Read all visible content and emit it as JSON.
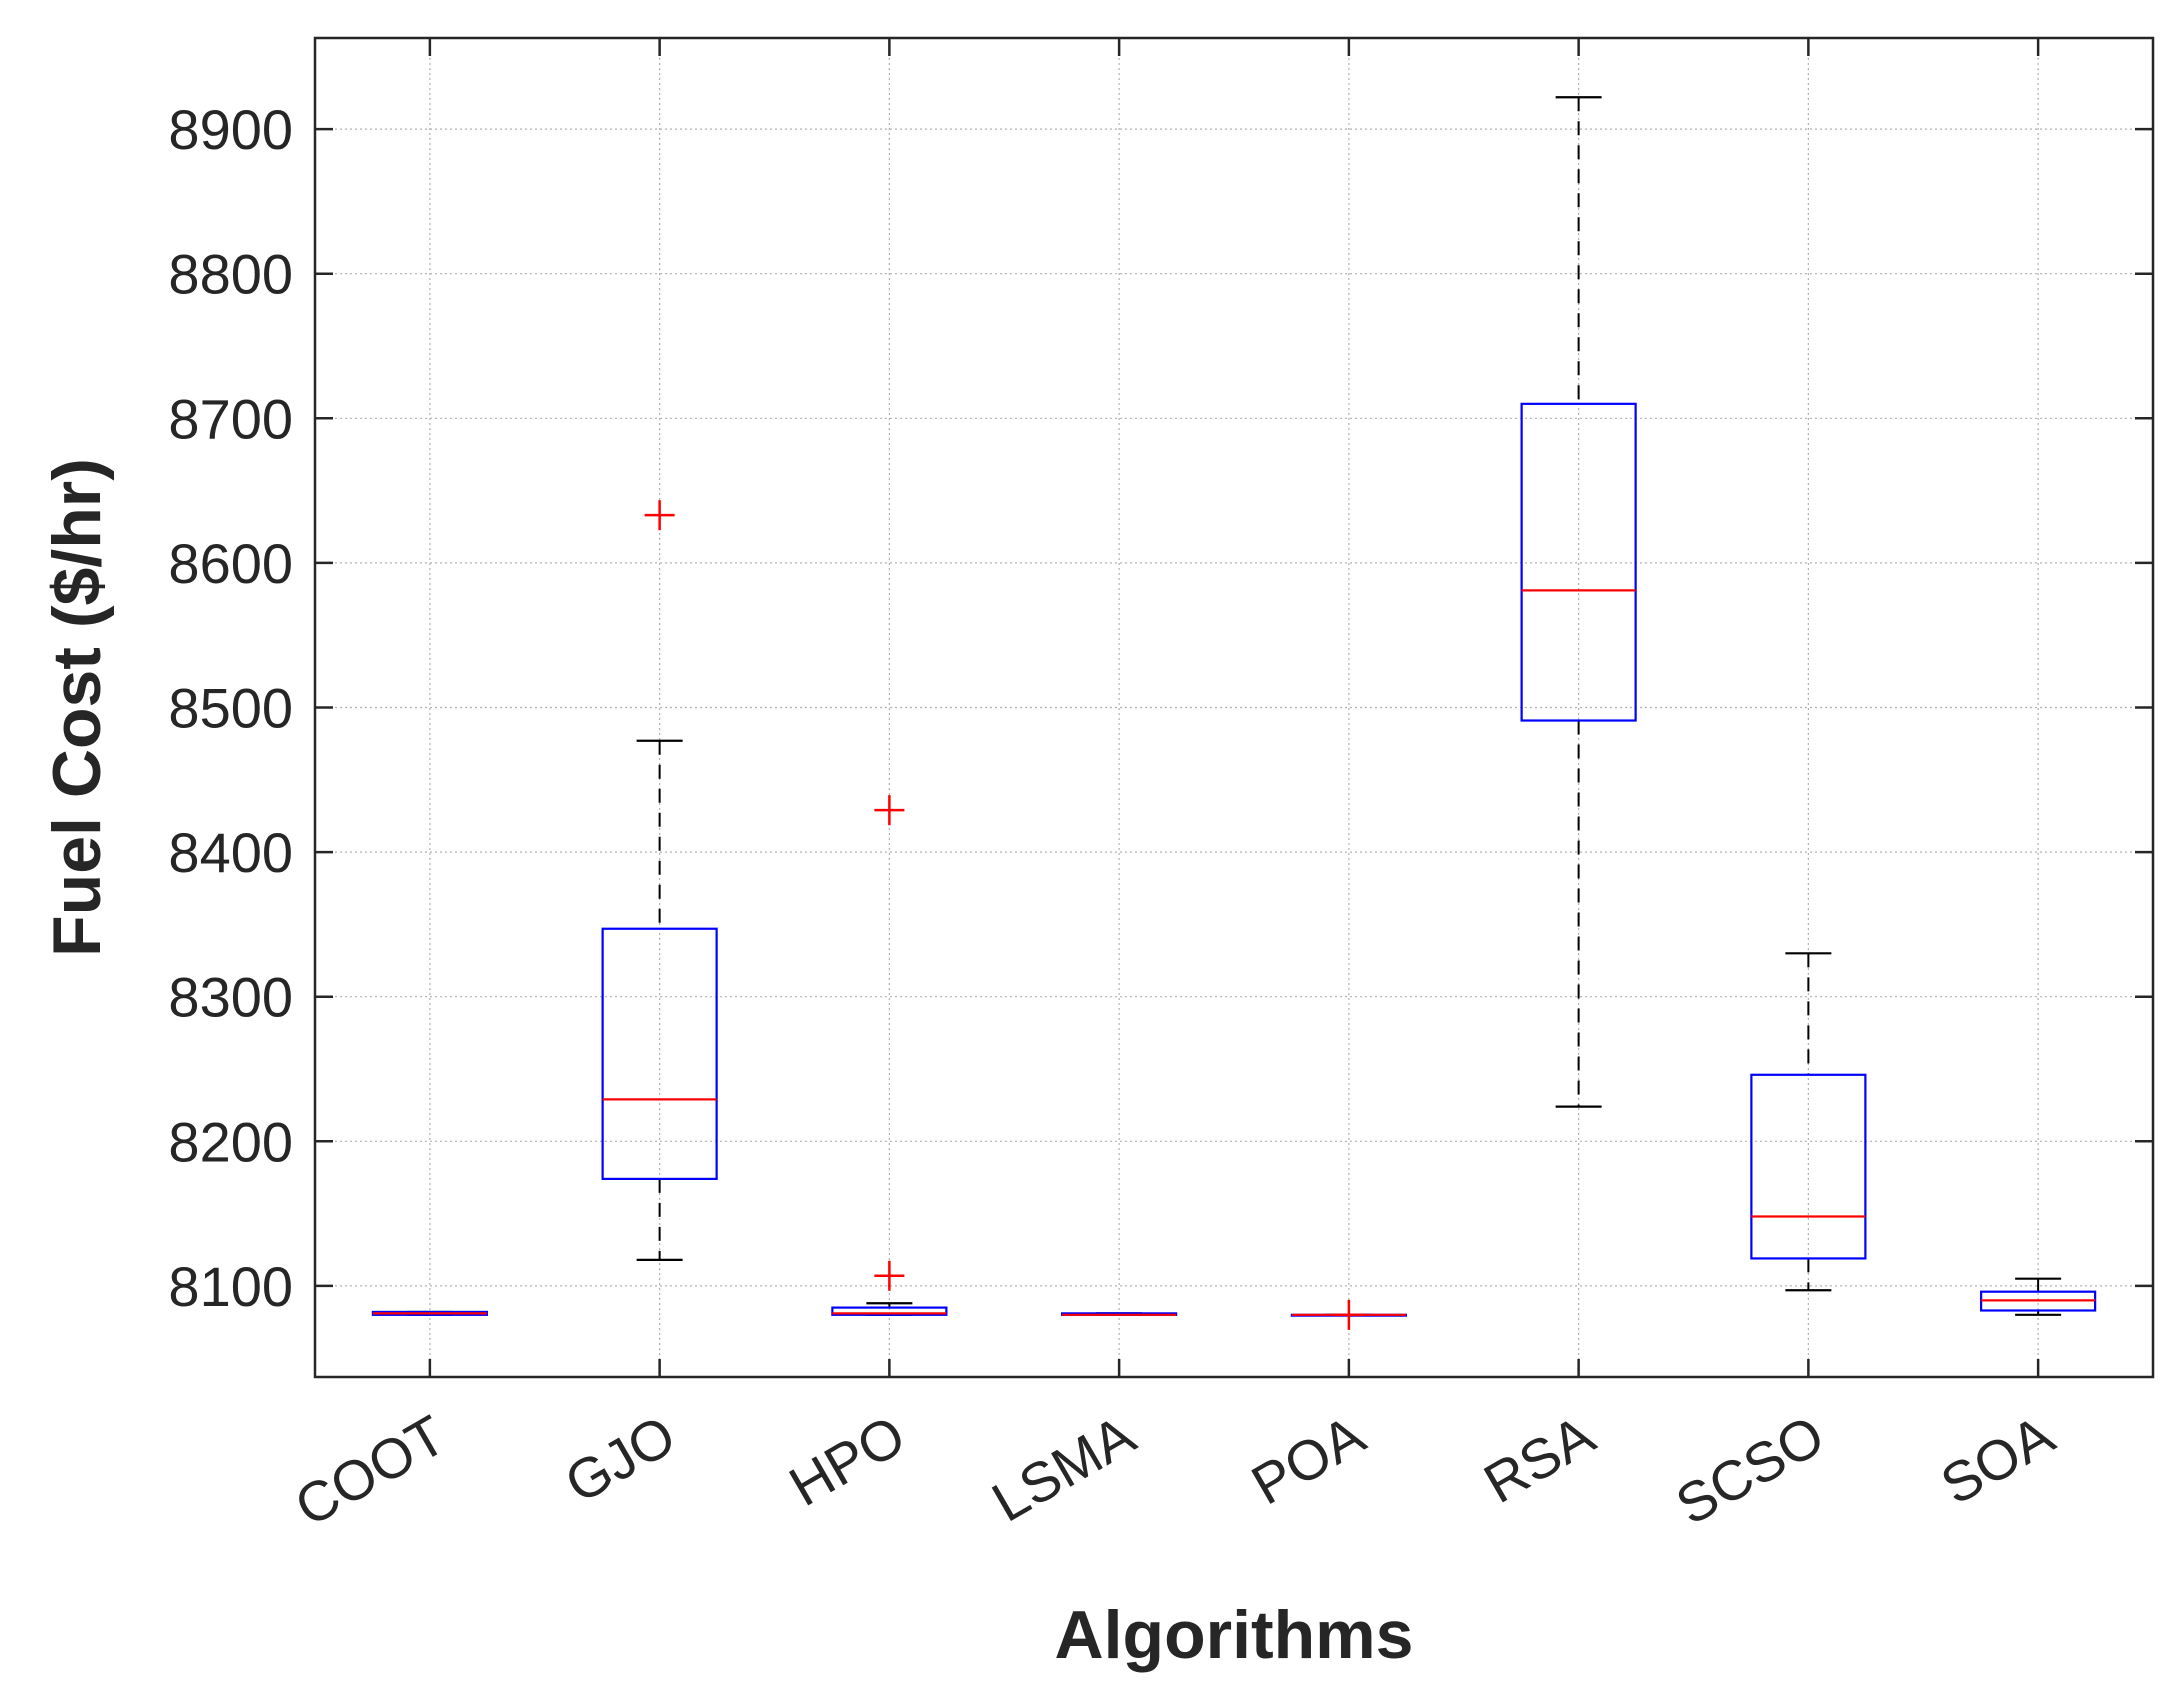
{
  "chart_data": {
    "type": "box",
    "title": "",
    "xlabel": "Algorithms",
    "ylabel": "Fuel Cost ($/hr)",
    "ylim": [
      8037,
      8963
    ],
    "yticks": [
      8100,
      8200,
      8300,
      8400,
      8500,
      8600,
      8700,
      8800,
      8900
    ],
    "grid": true,
    "colors": {
      "box": "#0000ff",
      "median": "#ff0000",
      "whisker": "#000000",
      "outlier": "#ff0000",
      "grid": "#b0b0b0",
      "axis": "#262626"
    },
    "categories": [
      "COOT",
      "GJO",
      "HPO",
      "LSMA",
      "POA",
      "RSA",
      "SCSO",
      "SOA"
    ],
    "boxes": [
      {
        "name": "COOT",
        "whisker_low": 8080,
        "q1": 8080,
        "median": 8081,
        "q3": 8082,
        "whisker_high": 8082,
        "outliers": []
      },
      {
        "name": "GJO",
        "whisker_low": 8118,
        "q1": 8174,
        "median": 8229,
        "q3": 8347,
        "whisker_high": 8477,
        "outliers": [
          8633
        ]
      },
      {
        "name": "HPO",
        "whisker_low": 8080,
        "q1": 8080,
        "median": 8081,
        "q3": 8085,
        "whisker_high": 8088,
        "outliers": [
          8107,
          8429
        ]
      },
      {
        "name": "LSMA",
        "whisker_low": 8080,
        "q1": 8080,
        "median": 8080,
        "q3": 8081,
        "whisker_high": 8081,
        "outliers": []
      },
      {
        "name": "POA",
        "whisker_low": 8080,
        "q1": 8080,
        "median": 8080,
        "q3": 8080,
        "whisker_high": 8080,
        "outliers": [
          8080
        ]
      },
      {
        "name": "RSA",
        "whisker_low": 8224,
        "q1": 8491,
        "median": 8581,
        "q3": 8710,
        "whisker_high": 8922,
        "outliers": []
      },
      {
        "name": "SCSO",
        "whisker_low": 8097,
        "q1": 8119,
        "median": 8148,
        "q3": 8246,
        "whisker_high": 8330,
        "outliers": []
      },
      {
        "name": "SOA",
        "whisker_low": 8080,
        "q1": 8083,
        "median": 8090,
        "q3": 8096,
        "whisker_high": 8105,
        "outliers": []
      }
    ]
  }
}
